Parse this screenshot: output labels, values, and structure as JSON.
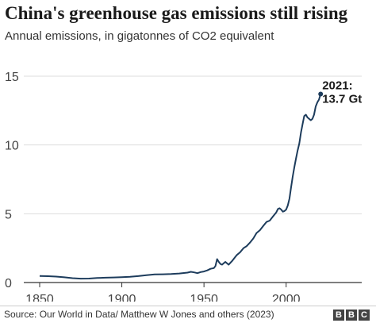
{
  "title": "China's greenhouse gas emissions still rising",
  "subtitle": "Annual emissions, in gigatonnes of CO2 equivalent",
  "source": "Source: Our World in Data/ Matthew W Jones and others (2023)",
  "logo": "BBC",
  "colors": {
    "line": "#1d3c5c",
    "grid": "#dddddd",
    "axis": "#333333"
  },
  "chart_data": {
    "type": "line",
    "title": "China's greenhouse gas emissions still rising",
    "subtitle": "Annual emissions, in gigatonnes of CO2 equivalent",
    "xlabel": "",
    "ylabel": "",
    "xlim": [
      1850,
      2021
    ],
    "ylim": [
      0,
      15
    ],
    "xticks": [
      1850,
      1900,
      1950,
      2000
    ],
    "yticks": [
      0,
      5,
      10,
      15
    ],
    "grid": "horizontal",
    "annotation": {
      "x": 2021,
      "y": 13.7,
      "line1": "2021:",
      "line2": "13.7 Gt"
    },
    "series": [
      {
        "x": [
          1850,
          1855,
          1860,
          1865,
          1870,
          1875,
          1880,
          1885,
          1890,
          1895,
          1900,
          1905,
          1910,
          1915,
          1920,
          1925,
          1930,
          1935,
          1940,
          1942,
          1944,
          1946,
          1948,
          1950,
          1952,
          1954,
          1956,
          1957,
          1958,
          1959,
          1960,
          1961,
          1962,
          1963,
          1965,
          1967,
          1969,
          1970,
          1972,
          1974,
          1976,
          1978,
          1980,
          1982,
          1984,
          1986,
          1988,
          1990,
          1992,
          1994,
          1995,
          1996,
          1997,
          1998,
          1999,
          2000,
          2001,
          2002,
          2003,
          2004,
          2005,
          2006,
          2007,
          2008,
          2009,
          2010,
          2011,
          2012,
          2013,
          2014,
          2015,
          2016,
          2017,
          2018,
          2019,
          2020,
          2021
        ],
        "values": [
          0.48,
          0.46,
          0.43,
          0.38,
          0.32,
          0.28,
          0.29,
          0.33,
          0.35,
          0.37,
          0.39,
          0.42,
          0.47,
          0.53,
          0.59,
          0.6,
          0.62,
          0.66,
          0.72,
          0.78,
          0.74,
          0.68,
          0.76,
          0.8,
          0.88,
          1.0,
          1.05,
          1.2,
          1.7,
          1.5,
          1.35,
          1.3,
          1.4,
          1.5,
          1.3,
          1.55,
          1.85,
          2.0,
          2.2,
          2.5,
          2.65,
          2.9,
          3.2,
          3.6,
          3.8,
          4.1,
          4.4,
          4.5,
          4.8,
          5.1,
          5.35,
          5.4,
          5.3,
          5.15,
          5.2,
          5.3,
          5.6,
          6.1,
          6.9,
          7.7,
          8.4,
          9.0,
          9.6,
          10.1,
          10.9,
          11.5,
          12.1,
          12.2,
          12.0,
          11.9,
          11.8,
          11.9,
          12.2,
          12.8,
          13.1,
          13.3,
          13.7
        ]
      }
    ]
  }
}
